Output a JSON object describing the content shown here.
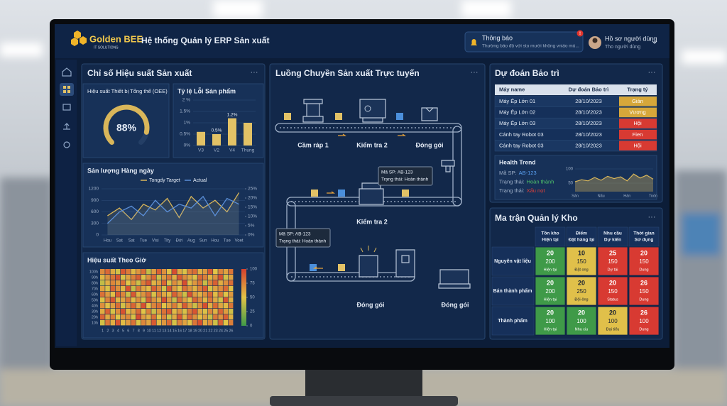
{
  "header": {
    "logo": "Golden BEE",
    "logo_tagline": "IT SOLUTIONS",
    "title": "Hệ thống Quản lý ERP Sản xuất",
    "notification": {
      "badge": "!",
      "title": "Thông báo",
      "text": "Thường báo độ với sto mưới không vniáo mú..."
    },
    "profile": {
      "title": "Hồ sơ người dùng",
      "subtitle": "Tho người dùng"
    }
  },
  "kpi_panel": {
    "title": "Chỉ số Hiệu suất Sản xuất",
    "menu": "···",
    "oee": {
      "type": "gauge",
      "title": "Hiệu suất Thiết bị Tổng thể (OEE)",
      "value": 88,
      "value_label": "88%",
      "range": [
        0,
        100
      ],
      "color": "#d9b65a"
    },
    "defects": {
      "type": "bar",
      "title": "Tỷ lệ Lỗi Sản phẩm",
      "categories": [
        "V3",
        "V2",
        "V4",
        "Thung"
      ],
      "values": [
        0.6,
        0.5,
        1.2,
        1.0
      ],
      "value_labels": [
        null,
        "0.5%",
        "1.2%",
        null
      ],
      "color": "#e2c266",
      "ylim": [
        0,
        2
      ],
      "yticks": [
        {
          "value": 0,
          "label": "0%"
        },
        {
          "value": 0.5,
          "label": "0.5%"
        },
        {
          "value": 1,
          "label": "1%"
        },
        {
          "value": 1.5,
          "label": "1.5%"
        },
        {
          "value": 2,
          "label": "2 %"
        }
      ]
    },
    "output": {
      "type": "line",
      "title": "Sản lượng Hàng ngày",
      "categories": [
        "Hou",
        "Sat",
        "Sat",
        "Tue",
        "Visi",
        "Tity",
        "Đới",
        "Aug",
        "Sun",
        "Hou",
        "Tue",
        "Voet"
      ],
      "series": [
        {
          "name": "Tongdy Target",
          "color": "#d9b65a",
          "values": [
            500,
            700,
            400,
            800,
            650,
            950,
            450,
            1000,
            700,
            900,
            600,
            1100
          ]
        },
        {
          "name": "Actual",
          "color": "#5b8fd8",
          "values": [
            300,
            600,
            750,
            500,
            900,
            600,
            800,
            700,
            1000,
            500,
            950,
            800
          ]
        }
      ],
      "ylim": [
        0,
        1200
      ],
      "yticks": [
        0,
        300,
        600,
        900,
        1200
      ],
      "y2lim": [
        0,
        25
      ],
      "y2ticks": [
        {
          "value": 0,
          "label": "0%"
        },
        {
          "value": 5,
          "label": "5%"
        },
        {
          "value": 10,
          "label": "10%"
        },
        {
          "value": 15,
          "label": "15%"
        },
        {
          "value": 20,
          "label": "20%"
        },
        {
          "value": 25,
          "label": "25%"
        }
      ]
    },
    "hourly": {
      "type": "heatmap",
      "title": "Hiệu suất Theo Giờ",
      "rows": [
        "100h",
        "90h",
        "80h",
        "70h",
        "60h",
        "50h",
        "40h",
        "30h",
        "20h",
        "10h"
      ],
      "columns": [
        1,
        2,
        3,
        4,
        5,
        6,
        7,
        8,
        9,
        10,
        11,
        12,
        13,
        14,
        15,
        16,
        17,
        18,
        19,
        20,
        21,
        22,
        23,
        24,
        25,
        26
      ],
      "values": [
        [
          72,
          85,
          60,
          45,
          90,
          78,
          55,
          68,
          82,
          40,
          65,
          88,
          70,
          52,
          95,
          61,
          48,
          77,
          83,
          58,
          66,
          91,
          50,
          74,
          63,
          80
        ],
        [
          55,
          68,
          80,
          92,
          47,
          63,
          75,
          88,
          52,
          70,
          85,
          43,
          66,
          79,
          58,
          90,
          72,
          61,
          49,
          84,
          76,
          57,
          69,
          93,
          45,
          62
        ],
        [
          40,
          58,
          73,
          65,
          82,
          50,
          69,
          44,
          77,
          91,
          56,
          64,
          86,
          48,
          71,
          60,
          95,
          53,
          67,
          80,
          42,
          74,
          88,
          59,
          70,
          83
        ],
        [
          63,
          47,
          85,
          70,
          56,
          94,
          41,
          79,
          62,
          54,
          88,
          73,
          45,
          92,
          66,
          50,
          81,
          69,
          57,
          76,
          89,
          46,
          63,
          71,
          84,
          52
        ],
        [
          81,
          66,
          52,
          89,
          74,
          43,
          90,
          57,
          68,
          83,
          47,
          76,
          61,
          55,
          87,
          72,
          44,
          93,
          65,
          58,
          70,
          85,
          53,
          78,
          49,
          67
        ],
        [
          48,
          75,
          91,
          56,
          62,
          80,
          53,
          71,
          46,
          88,
          69,
          59,
          94,
          67,
          42,
          83,
          64,
          50,
          86,
          73,
          55,
          79,
          60,
          45,
          92,
          58
        ],
        [
          70,
          52,
          64,
          83,
          45,
          68,
          86,
          60,
          93,
          51,
          74,
          82,
          49,
          63,
          77,
          56,
          89,
          66,
          43,
          71,
          95,
          58,
          84,
          62,
          54,
          80
        ],
        [
          59,
          88,
          46,
          71,
          93,
          55,
          62,
          84,
          50,
          76,
          43,
          67,
          81,
          90,
          54,
          69,
          47,
          78,
          92,
          61,
          48,
          73,
          57,
          86,
          65,
          44
        ],
        [
          86,
          61,
          77,
          49,
          68,
          72,
          47,
          95,
          65,
          58,
          82,
          50,
          74,
          44,
          60,
          91,
          56,
          85,
          70,
          53,
          64,
          42,
          79,
          68,
          88,
          57
        ],
        [
          45,
          79,
          58,
          92,
          53,
          66,
          81,
          48,
          73,
          62,
          90,
          55,
          67,
          84,
          46,
          75,
          63,
          52,
          80,
          94,
          59,
          71,
          44,
          87,
          50,
          76
        ]
      ],
      "clim": [
        0,
        100
      ],
      "cticks": [
        0,
        25,
        50,
        75,
        100
      ],
      "colorscale": [
        "#3f9a48",
        "#e2c447",
        "#d5402d"
      ]
    }
  },
  "flow_panel": {
    "title": "Luồng Chuyền Sản xuất Trực tuyến",
    "menu": "···",
    "stations": [
      "Cầm ráp 1",
      "Kiểm tra 2",
      "Đóng gói",
      "Kiểm tra 2",
      "Đóng gói",
      "Đóng gói"
    ],
    "tooltips": [
      {
        "code": "Mã SP: AB-123",
        "status": "Trạng thái: Hoàn thành"
      },
      {
        "code": "Mã SP: AB-123",
        "status": "Trạng thái: Hoàn thành"
      }
    ]
  },
  "maintenance_panel": {
    "title": "Dự đoán Bảo trì",
    "menu": "···",
    "table": {
      "columns": [
        "Máy name",
        "Dự đoán Bảo trì",
        "Trạng tý"
      ],
      "rows": [
        [
          "Máy Ép Lớn 01",
          "28/10/2023",
          "Gián"
        ],
        [
          "Máy Ép Lớn 02",
          "28/10/2023",
          "Vương"
        ],
        [
          "Máy Ép Lớn 03",
          "28/10/2023",
          "Hội"
        ],
        [
          "Cánh tay Robot 03",
          "28/10/2023",
          "Fien"
        ],
        [
          "Cánh tay Robot 03",
          "28/10/2023",
          "Hội"
        ]
      ],
      "status_colors": [
        "#d6a73a",
        "#d6a73a",
        "#d83a32",
        "#d83a32",
        "#d83a32"
      ]
    },
    "health": {
      "title": "Health Trend",
      "fields": [
        {
          "label": "Mã SP:",
          "value": "AB-123",
          "color": "#5aa0f0"
        },
        {
          "label": "Trạng thái:",
          "value": "Hoàn thành",
          "color": "#4fc36a"
        },
        {
          "label": "Trạng thái:",
          "value": "Xấu nọt",
          "color": "#e0413a"
        }
      ],
      "chart": {
        "type": "area",
        "categories": [
          "Sán",
          null,
          null,
          null,
          "Nấu",
          null,
          null,
          null,
          "Hán",
          null,
          null,
          null,
          "Toón"
        ],
        "values": [
          55,
          62,
          58,
          70,
          60,
          74,
          66,
          72,
          58,
          82,
          68,
          78,
          64
        ],
        "color": "#d9b65a",
        "ylim": [
          20,
          100
        ],
        "yticks": [
          50,
          100
        ]
      }
    }
  },
  "inventory_panel": {
    "title": "Ma trận Quản lý Kho",
    "menu": "···",
    "columns": [
      [
        "Tồn kho",
        "Hiện tại"
      ],
      [
        "Điểm",
        "Đặt hàng lại"
      ],
      [
        "Nhu cầu",
        "Dự kiến"
      ],
      [
        "Thời gian",
        "Sử dụng"
      ]
    ],
    "rows": [
      {
        "label": "Nguyên vật liệu",
        "cells": [
          {
            "value": 20,
            "detail": 200,
            "note": "Hiện tại",
            "color": "#3f9a48"
          },
          {
            "value": 10,
            "detail": 150,
            "note": "Đặt ong",
            "color": "#e0c04a"
          },
          {
            "value": 25,
            "detail": 150,
            "note": "Dự tái",
            "color": "#d83a32"
          },
          {
            "value": 20,
            "detail": 150,
            "note": "Dung",
            "color": "#d83a32"
          }
        ]
      },
      {
        "label": "Bán thành phẩm",
        "cells": [
          {
            "value": 20,
            "detail": 200,
            "note": "Hiện tại",
            "color": "#3f9a48"
          },
          {
            "value": 20,
            "detail": 250,
            "note": "Đội-ông",
            "color": "#e0c04a"
          },
          {
            "value": 20,
            "detail": 150,
            "note": "Status",
            "color": "#d83a32"
          },
          {
            "value": 26,
            "detail": 150,
            "note": "Dung",
            "color": "#d83a32"
          }
        ]
      },
      {
        "label": "Thành phẩm",
        "cells": [
          {
            "value": 20,
            "detail": 100,
            "note": "Hiện tại",
            "color": "#3f9a48"
          },
          {
            "value": 20,
            "detail": 100,
            "note": "Nhu ciu",
            "color": "#3f9a48"
          },
          {
            "value": 20,
            "detail": 100,
            "note": "Đại tiểu",
            "color": "#e0c04a"
          },
          {
            "value": 26,
            "detail": 100,
            "note": "Dung",
            "color": "#d83a32"
          }
        ]
      }
    ]
  }
}
